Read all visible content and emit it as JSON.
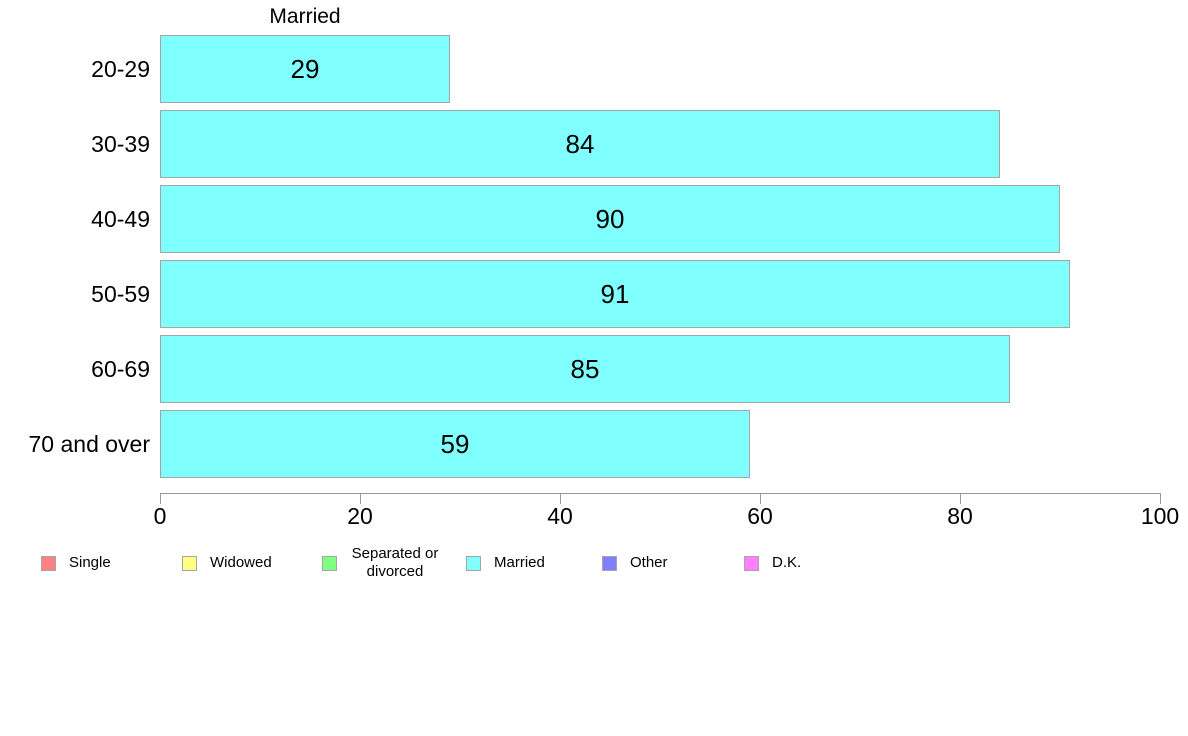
{
  "chart_data": {
    "type": "bar",
    "orientation": "horizontal",
    "title": "Married",
    "categories": [
      "20-29",
      "30-39",
      "40-49",
      "50-59",
      "60-69",
      "70 and over"
    ],
    "values": [
      29,
      84,
      90,
      91,
      85,
      59
    ],
    "xlabel": "",
    "ylabel": "",
    "xlim": [
      0,
      100
    ],
    "x_ticks": [
      0,
      20,
      40,
      60,
      80,
      100
    ],
    "grid": "off",
    "value_labels": "inside-center",
    "bar_color": "#80FFFF",
    "bar_border_color": "#a6a6a6",
    "axis_color": "#999999",
    "text_color": "#000000",
    "legend_position": "bottom",
    "legend": [
      {
        "label": "Single",
        "color": "#FF8080"
      },
      {
        "label": "Widowed",
        "color": "#FFFF80"
      },
      {
        "label": "Separated or divorced",
        "color": "#80FF80"
      },
      {
        "label": "Married",
        "color": "#80FFFF"
      },
      {
        "label": "Other",
        "color": "#8080FF"
      },
      {
        "label": "D.K.",
        "color": "#FF80FF"
      }
    ]
  }
}
